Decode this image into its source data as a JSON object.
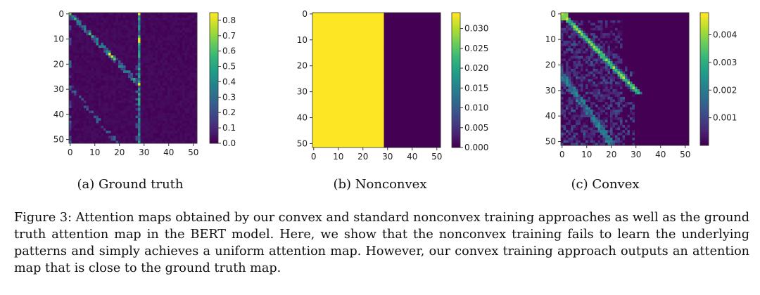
{
  "subfigures": [
    {
      "label": "(a) Ground truth"
    },
    {
      "label": "(b) Nonconvex"
    },
    {
      "label": "(c) Convex"
    }
  ],
  "caption": {
    "label": "Figure 3:",
    "text": "Attention maps obtained by our convex and standard nonconvex training approaches as well as the ground truth attention map in the BERT model. Here, we show that the nonconvex training fails to learn the underlying patterns and simply achieves a uniform attention map. However, our convex training approach outputs an attention map that is close to the ground truth map."
  },
  "chart_data": [
    {
      "type": "heatmap",
      "title": "(a) Ground truth",
      "grid_size": 52,
      "x_ticks": [
        0,
        10,
        20,
        30,
        40,
        50
      ],
      "y_ticks": [
        0,
        10,
        20,
        30,
        40,
        50
      ],
      "colormap": "viridis",
      "colorbar_range": [
        0.0,
        0.85
      ],
      "colorbar_ticks": [
        "0.0",
        "0.1",
        "0.2",
        "0.3",
        "0.4",
        "0.5",
        "0.6",
        "0.7",
        "0.8"
      ],
      "pattern": "sparse diagonal from (0,0) to (28,28) with bright column at x=28 and faint secondary diagonal below row 28"
    },
    {
      "type": "heatmap",
      "title": "(b) Nonconvex",
      "grid_size": 52,
      "x_ticks": [
        0,
        10,
        20,
        30,
        40,
        50
      ],
      "y_ticks": [
        0,
        10,
        20,
        30,
        40,
        50
      ],
      "colormap": "viridis",
      "colorbar_range": [
        0.0,
        0.034
      ],
      "colorbar_ticks": [
        "0.000",
        "0.005",
        "0.010",
        "0.015",
        "0.020",
        "0.025",
        "0.030"
      ],
      "pattern": "uniform: columns 0-28 at max, columns 29-51 at 0"
    },
    {
      "type": "heatmap",
      "title": "(c) Convex",
      "grid_size": 52,
      "x_ticks": [
        0,
        10,
        20,
        30,
        40,
        50
      ],
      "y_ticks": [
        0,
        10,
        20,
        30,
        40,
        50
      ],
      "colormap": "viridis",
      "colorbar_range": [
        0.0,
        0.0048
      ],
      "colorbar_ticks": [
        "0.001",
        "0.002",
        "0.003",
        "0.004"
      ],
      "pattern": "noisy main diagonal from (0,0) to (30,30) plus secondary diagonal in lower-left"
    }
  ]
}
